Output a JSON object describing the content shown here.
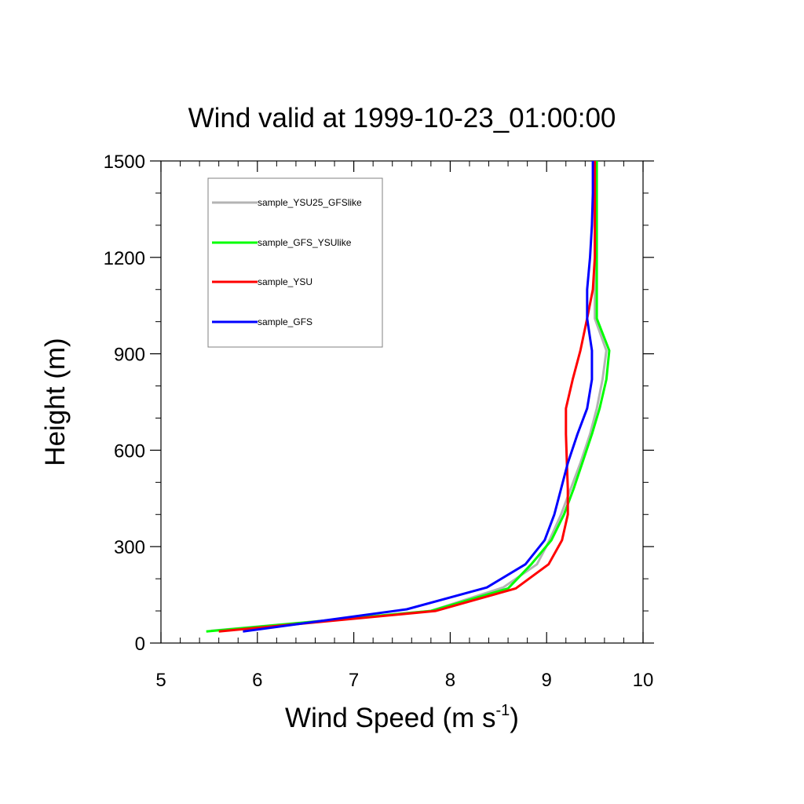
{
  "chart_data": {
    "type": "line",
    "title": "Wind valid at 1999-10-23_01:00:00",
    "xlabel": "Wind Speed (m s",
    "xlabel_sup": "-1",
    "xlabel_close": ")",
    "ylabel": "Height (m)",
    "xlim": [
      5,
      10
    ],
    "ylim": [
      0,
      1500
    ],
    "x_ticks": [
      5,
      6,
      7,
      8,
      9,
      10
    ],
    "y_ticks": [
      0,
      300,
      600,
      900,
      1200,
      1500
    ],
    "grid": false,
    "legend_position": "top-left",
    "series": [
      {
        "name": "sample_YSU25_GFSlike",
        "color": "#b4b4b4",
        "points": [
          [
            5.52,
            38
          ],
          [
            7.8,
            100
          ],
          [
            8.55,
            173
          ],
          [
            8.9,
            245
          ],
          [
            9.03,
            320
          ],
          [
            9.15,
            400
          ],
          [
            9.25,
            480
          ],
          [
            9.35,
            560
          ],
          [
            9.45,
            650
          ],
          [
            9.52,
            730
          ],
          [
            9.58,
            820
          ],
          [
            9.62,
            910
          ],
          [
            9.5,
            1010
          ],
          [
            9.5,
            1100
          ],
          [
            9.5,
            1200
          ],
          [
            9.5,
            1300
          ],
          [
            9.5,
            1500
          ]
        ]
      },
      {
        "name": "sample_GFS_YSUlike",
        "color": "#00ff00",
        "points": [
          [
            5.47,
            36
          ],
          [
            7.8,
            100
          ],
          [
            8.6,
            170
          ],
          [
            8.84,
            245
          ],
          [
            9.05,
            320
          ],
          [
            9.18,
            400
          ],
          [
            9.28,
            480
          ],
          [
            9.37,
            560
          ],
          [
            9.47,
            650
          ],
          [
            9.55,
            730
          ],
          [
            9.62,
            820
          ],
          [
            9.65,
            910
          ],
          [
            9.52,
            1010
          ],
          [
            9.52,
            1100
          ],
          [
            9.52,
            1200
          ],
          [
            9.52,
            1300
          ],
          [
            9.52,
            1500
          ]
        ]
      },
      {
        "name": "sample_YSU",
        "color": "#ff0000",
        "points": [
          [
            5.6,
            36
          ],
          [
            7.85,
            100
          ],
          [
            8.68,
            170
          ],
          [
            9.02,
            245
          ],
          [
            9.16,
            320
          ],
          [
            9.22,
            400
          ],
          [
            9.22,
            480
          ],
          [
            9.21,
            560
          ],
          [
            9.2,
            650
          ],
          [
            9.2,
            730
          ],
          [
            9.27,
            820
          ],
          [
            9.35,
            910
          ],
          [
            9.42,
            1010
          ],
          [
            9.48,
            1100
          ],
          [
            9.5,
            1200
          ],
          [
            9.5,
            1300
          ],
          [
            9.5,
            1500
          ]
        ]
      },
      {
        "name": "sample_GFS",
        "color": "#0000ff",
        "points": [
          [
            5.85,
            36
          ],
          [
            7.55,
            105
          ],
          [
            8.38,
            173
          ],
          [
            8.78,
            245
          ],
          [
            8.98,
            320
          ],
          [
            9.08,
            400
          ],
          [
            9.15,
            480
          ],
          [
            9.22,
            560
          ],
          [
            9.32,
            650
          ],
          [
            9.42,
            730
          ],
          [
            9.47,
            820
          ],
          [
            9.47,
            910
          ],
          [
            9.42,
            1010
          ],
          [
            9.42,
            1100
          ],
          [
            9.45,
            1200
          ],
          [
            9.47,
            1300
          ],
          [
            9.48,
            1400
          ],
          [
            9.48,
            1500
          ]
        ]
      }
    ]
  }
}
